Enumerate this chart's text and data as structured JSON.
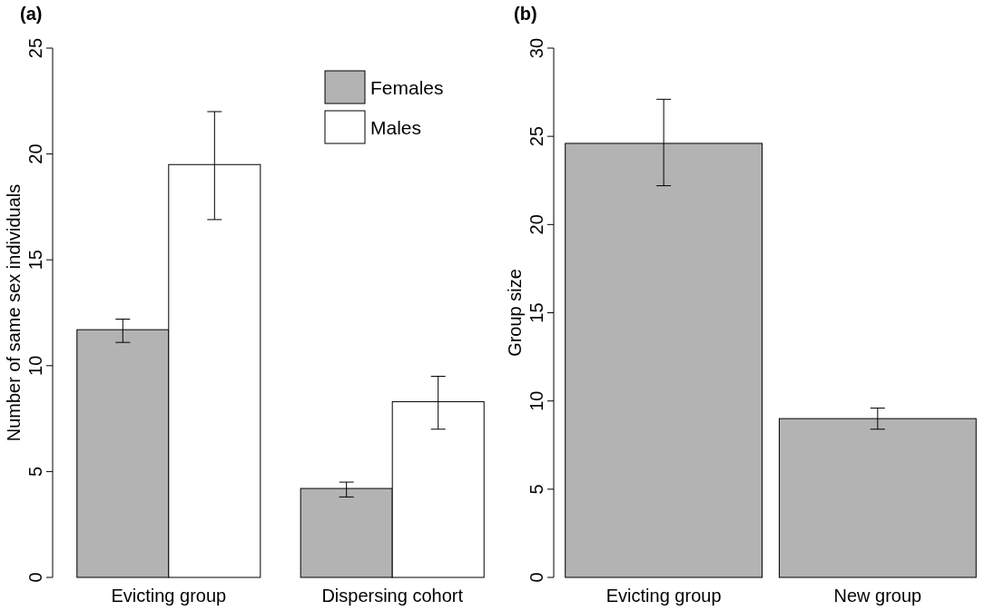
{
  "chart_data": [
    {
      "type": "bar",
      "title": "(a)",
      "ylabel": "Number of same sex individuals",
      "categories": [
        "Evicting group",
        "Dispersing cohort"
      ],
      "ylim": [
        0,
        25
      ],
      "yticks": [
        0,
        5,
        10,
        15,
        20,
        25
      ],
      "legend": "top right",
      "grid": false,
      "series": [
        {
          "name": "Females",
          "color": "#b3b3b3",
          "values": [
            11.7,
            4.2
          ],
          "errors": [
            [
              11.1,
              12.2
            ],
            [
              3.8,
              4.5
            ]
          ]
        },
        {
          "name": "Males",
          "color": "#ffffff",
          "values": [
            19.5,
            8.3
          ],
          "errors": [
            [
              16.9,
              22.0
            ],
            [
              7.0,
              9.5
            ]
          ]
        }
      ]
    },
    {
      "type": "bar",
      "title": "(b)",
      "ylabel": "Group size",
      "categories": [
        "Evicting group",
        "New group"
      ],
      "ylim": [
        0,
        30
      ],
      "yticks": [
        0,
        5,
        10,
        15,
        20,
        25,
        30
      ],
      "legend": false,
      "grid": false,
      "series": [
        {
          "color": "#b3b3b3",
          "values": [
            24.6,
            9.0
          ],
          "errors": [
            [
              22.2,
              27.1
            ],
            [
              8.4,
              9.6
            ]
          ]
        }
      ]
    }
  ]
}
